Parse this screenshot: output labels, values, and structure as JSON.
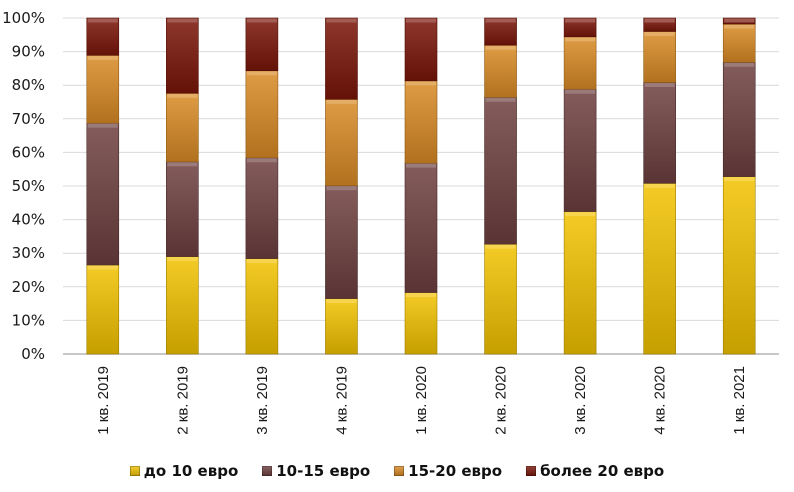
{
  "chart_data": {
    "type": "bar",
    "stacked": true,
    "percent": true,
    "title": "",
    "xlabel": "",
    "ylabel": "",
    "ylim": [
      0,
      100
    ],
    "yticks": [
      "0%",
      "10%",
      "20%",
      "30%",
      "40%",
      "50%",
      "60%",
      "70%",
      "80%",
      "90%",
      "100%"
    ],
    "grid": true,
    "legend_position": "bottom",
    "categories": [
      "1 кв. 2019",
      "2 кв. 2019",
      "3 кв. 2019",
      "4 кв. 2019",
      "1 кв. 2020",
      "2 кв. 2020",
      "3 кв. 2020",
      "4 кв. 2020",
      "1 кв. 2021"
    ],
    "series": [
      {
        "name": "до 10 евро",
        "color": "#f2c200",
        "values": [
          26.5,
          29.0,
          28.4,
          16.5,
          18.3,
          32.7,
          42.4,
          50.8,
          52.8
        ]
      },
      {
        "name": "10-15 евро",
        "color": "#6e3f3f",
        "values": [
          42.2,
          28.2,
          30.0,
          33.6,
          38.5,
          43.7,
          36.4,
          30.0,
          34.0
        ]
      },
      {
        "name": "15-20 евро",
        "color": "#d98a24",
        "values": [
          20.2,
          20.4,
          25.9,
          25.7,
          24.5,
          15.5,
          15.6,
          15.2,
          11.4
        ]
      },
      {
        "name": "более 20 евро",
        "color": "#7a1508",
        "values": [
          11.1,
          22.4,
          15.7,
          24.2,
          18.7,
          8.1,
          5.6,
          4.0,
          1.8
        ]
      }
    ]
  }
}
